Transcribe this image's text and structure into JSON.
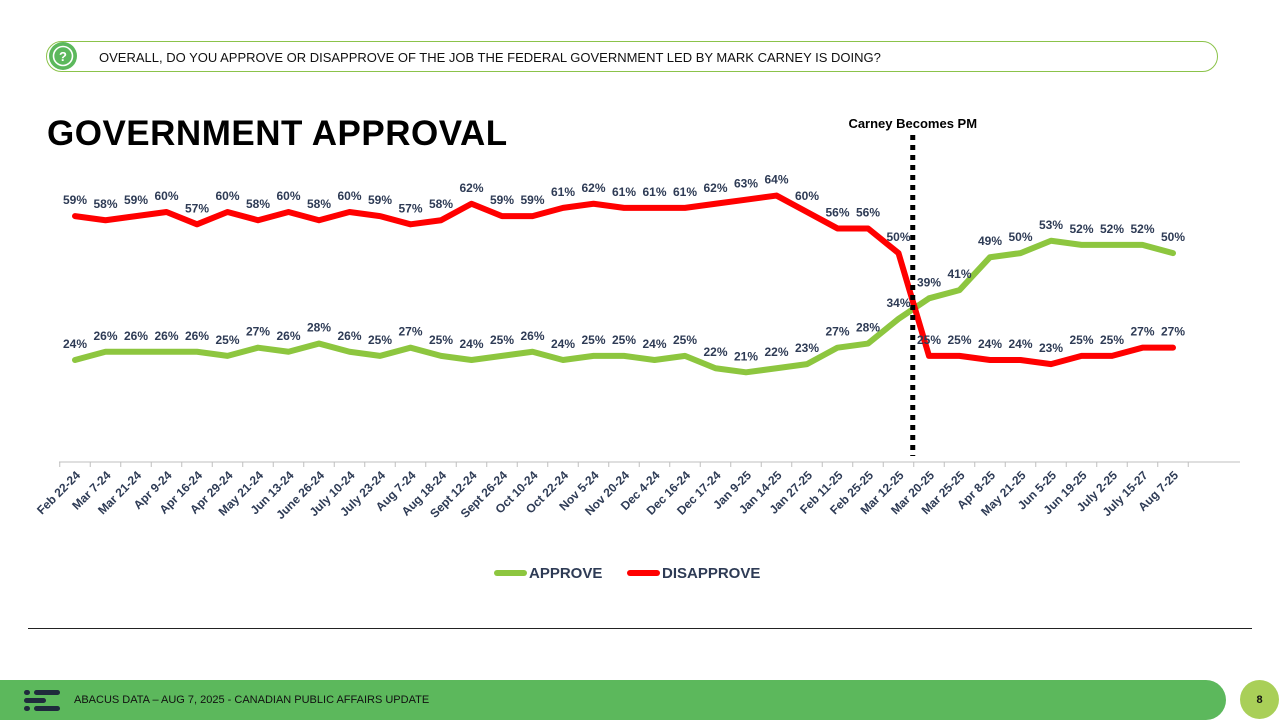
{
  "question": {
    "icon": "question-icon",
    "text": "OVERALL, DO YOU APPROVE OR DISAPPROVE OF THE JOB THE FEDERAL GOVERNMENT LED BY MARK CARNEY IS DOING?"
  },
  "title": "GOVERNMENT APPROVAL",
  "footer": {
    "text": "ABACUS DATA – AUG 7, 2025 - CANADIAN PUBLIC AFFAIRS UPDATE",
    "page_number": "8",
    "logo_icon": "abacus-logo-icon"
  },
  "colors": {
    "approve": "#8dc63f",
    "disapprove": "#ff0000",
    "label": "#2e3b55",
    "footer": "#5cb85c",
    "badge": "#a9cf58"
  },
  "chart_data": {
    "type": "line",
    "title": "GOVERNMENT APPROVAL",
    "xlabel": "",
    "ylabel": "",
    "ylim": [
      0,
      80
    ],
    "grid": false,
    "legend_position": "bottom",
    "categories": [
      "Feb 22-24",
      "Mar 7-24",
      "Mar 21-24",
      "Apr 9-24",
      "Apr 16-24",
      "Apr 29-24",
      "May 21-24",
      "Jun 13-24",
      "June 26-24",
      "July 10-24",
      "July 23-24",
      "Aug 7-24",
      "Aug 18-24",
      "Sept 12-24",
      "Sept 26-24",
      "Oct 10-24",
      "Oct 22-24",
      "Nov 5-24",
      "Nov 20-24",
      "Dec 4-24",
      "Dec 16-24",
      "Dec 17-24",
      "Jan 9-25",
      "Jan 14-25",
      "Jan 27-25",
      "Feb 11-25",
      "Feb 25-25",
      "Mar 12-25",
      "Mar 20-25",
      "Mar 25-25",
      "Apr 8-25",
      "May 21-25",
      "Jun 5-25",
      "Jun 19-25",
      "July 2-25",
      "July 15-27",
      "Aug 7-25"
    ],
    "series": [
      {
        "name": "APPROVE",
        "color": "#8dc63f",
        "values": [
          24,
          26,
          26,
          26,
          26,
          25,
          27,
          26,
          28,
          26,
          25,
          27,
          25,
          24,
          25,
          26,
          24,
          25,
          25,
          24,
          25,
          22,
          21,
          22,
          23,
          27,
          28,
          34,
          39,
          41,
          49,
          50,
          53,
          52,
          52,
          52,
          50
        ]
      },
      {
        "name": "DISAPPROVE",
        "color": "#ff0000",
        "values": [
          59,
          58,
          59,
          60,
          57,
          60,
          58,
          60,
          58,
          60,
          59,
          57,
          58,
          62,
          59,
          59,
          61,
          62,
          61,
          61,
          61,
          62,
          63,
          64,
          60,
          56,
          56,
          50,
          25,
          25,
          24,
          24,
          23,
          25,
          25,
          27,
          27
        ]
      }
    ],
    "annotations": [
      {
        "text": "Carney Becomes PM",
        "position_category": "Mar 12-25",
        "style": "dotted-vertical-line"
      }
    ]
  }
}
